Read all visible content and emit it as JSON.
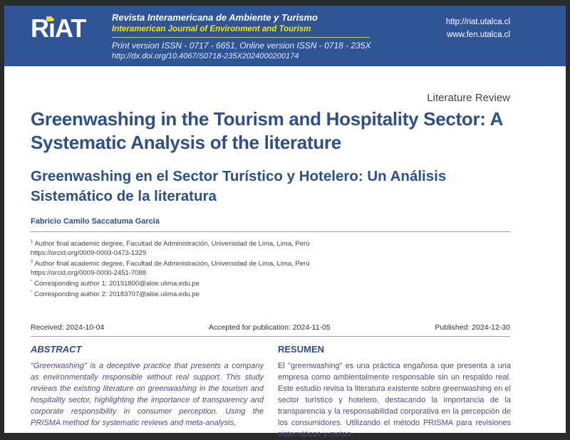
{
  "header": {
    "logo": "RiAT",
    "journal_title": "Revista Interamericana de Ambiente y Turismo",
    "journal_title_en": "Interamerican Journal of Environment and Tourism",
    "issn": "Print version ISSN - 0717 - 6651, Online version ISSN - 0718 - 235X",
    "doi": "http://dx.doi.org/10.4067/S0718-235X2024000200174",
    "url1": "http://riat.utalca.cl",
    "url2": "www.fen.utalca.cl",
    "brand_color": "#2f5597",
    "accent_color": "#f5e400"
  },
  "article": {
    "type": "Literature Review",
    "title_en": "Greenwashing in the Tourism and Hospitality Sector: A Systematic Analysis of the literature",
    "title_es": "Greenwashing en el Sector Turístico y Hotelero: Un Análisis Sistemático de la literatura",
    "author": "Fabricio Camilo Saccatuma Garcia",
    "notes": [
      {
        "mark": "1",
        "text": "Author final academic degree, Facultad de Administración, Universidad de Lima, Lima, Perú"
      },
      {
        "mark": "",
        "text": "https://orcid.org/0009-0003-0473-1329"
      },
      {
        "mark": "2",
        "text": "Author final academic degree, Facultad de Administración, Universidad de Lima, Lima, Perú"
      },
      {
        "mark": "",
        "text": "https://orcid.org/0009-0000-2451-7088"
      },
      {
        "mark": "*",
        "text": "Corresponding author 1: 20191800@aloe.ulima.edu.pe"
      },
      {
        "mark": "*",
        "text": "Corresponding author 2: 20183707@aloe.ulima.edu.pe"
      }
    ],
    "received": "Received: 2024-10-04",
    "accepted": "Accepted for publication: 2024-11-05",
    "published": "Published: 2024-12-30",
    "abstract_heading": "ABSTRACT",
    "abstract_text": "\"Greenwashing\" is a deceptive practice that presents a company as environmentally responsible without real support. This study reviews the existing literature on greenwashing in the tourism and hospitality sector, highlighting the importance of transparency and corporate responsibility in consumer perception. Using the PRISMA method for systematic reviews and meta-analysis,",
    "resumen_heading": "RESUMEN",
    "resumen_text": "El \"greenwashing\" es una práctica engañosa que presenta a una empresa como ambientalmente responsable sin un respaldo real. Este estudio revisa la literatura existente sobre greenwashing en el sector turístico y hotelero, destacando la importancia de la transparencia y la responsabilidad corporativa en la percepción de los consumidores. Utilizando el método PRISMA para revisiones sistemáticas y metaa-"
  }
}
